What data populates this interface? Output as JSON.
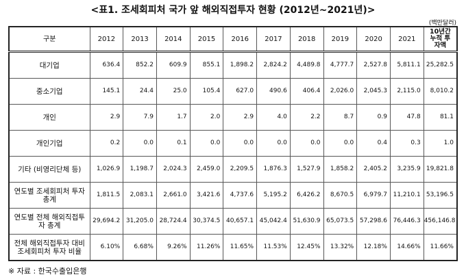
{
  "header": {
    "title": "<표1. 조세회피처 국가 앞 해외직접투자 현황 (2012년~2021년)>",
    "unit": "(백만달러)"
  },
  "table": {
    "columns": [
      "구분",
      "2012",
      "2013",
      "2014",
      "2015",
      "2016",
      "2017",
      "2018",
      "2019",
      "2020",
      "2021",
      "10년간 누적 투자액"
    ],
    "rows": [
      [
        "대기업",
        "636.4",
        "852.2",
        "609.9",
        "855.1",
        "1,898.2",
        "2,824.2",
        "4,489.8",
        "4,777.7",
        "2,527.8",
        "5,811.1",
        "25,282.5"
      ],
      [
        "중소기업",
        "145.1",
        "24.4",
        "25.0",
        "105.4",
        "627.0",
        "490.6",
        "406.4",
        "2,026.0",
        "2,045.3",
        "2,115.0",
        "8,010.2"
      ],
      [
        "개인",
        "2.9",
        "7.9",
        "1.7",
        "2.0",
        "2.9",
        "4.0",
        "2.2",
        "8.7",
        "0.9",
        "47.8",
        "81.1"
      ],
      [
        "개인기업",
        "0.2",
        "0.0",
        "0.1",
        "0.0",
        "0.0",
        "0.0",
        "0.0",
        "0.0",
        "0.4",
        "0.3",
        "1.0"
      ],
      [
        "기타 (비영리단체 등)",
        "1,026.9",
        "1,198.7",
        "2,024.3",
        "2,459.0",
        "2,209.5",
        "1,876.3",
        "1,527.9",
        "1,858.2",
        "2,405.2",
        "3,235.9",
        "19,821.8"
      ],
      [
        "연도별 조세회피처 투자총계",
        "1,811.5",
        "2,083.1",
        "2,661.0",
        "3,421.6",
        "4,737.6",
        "5,195.2",
        "6,426.2",
        "8,670.5",
        "6,979.7",
        "11,210.1",
        "53,196.5"
      ],
      [
        "연도별 전체 해외직접투자 총계",
        "29,694.2",
        "31,205.0",
        "28,724.4",
        "30,374.5",
        "40,657.1",
        "45,042.4",
        "51,630.9",
        "65,073.5",
        "57,298.6",
        "76,446.3",
        "456,146.8"
      ],
      [
        "전체 해외직접투자 대비 조세회피처 투자 비율",
        "6.10%",
        "6.68%",
        "9.26%",
        "11.26%",
        "11.65%",
        "11.53%",
        "12.45%",
        "13.32%",
        "12.18%",
        "14.66%",
        "11.66%"
      ]
    ]
  },
  "footer": {
    "source": "※ 자료 : 한국수출입은행"
  }
}
